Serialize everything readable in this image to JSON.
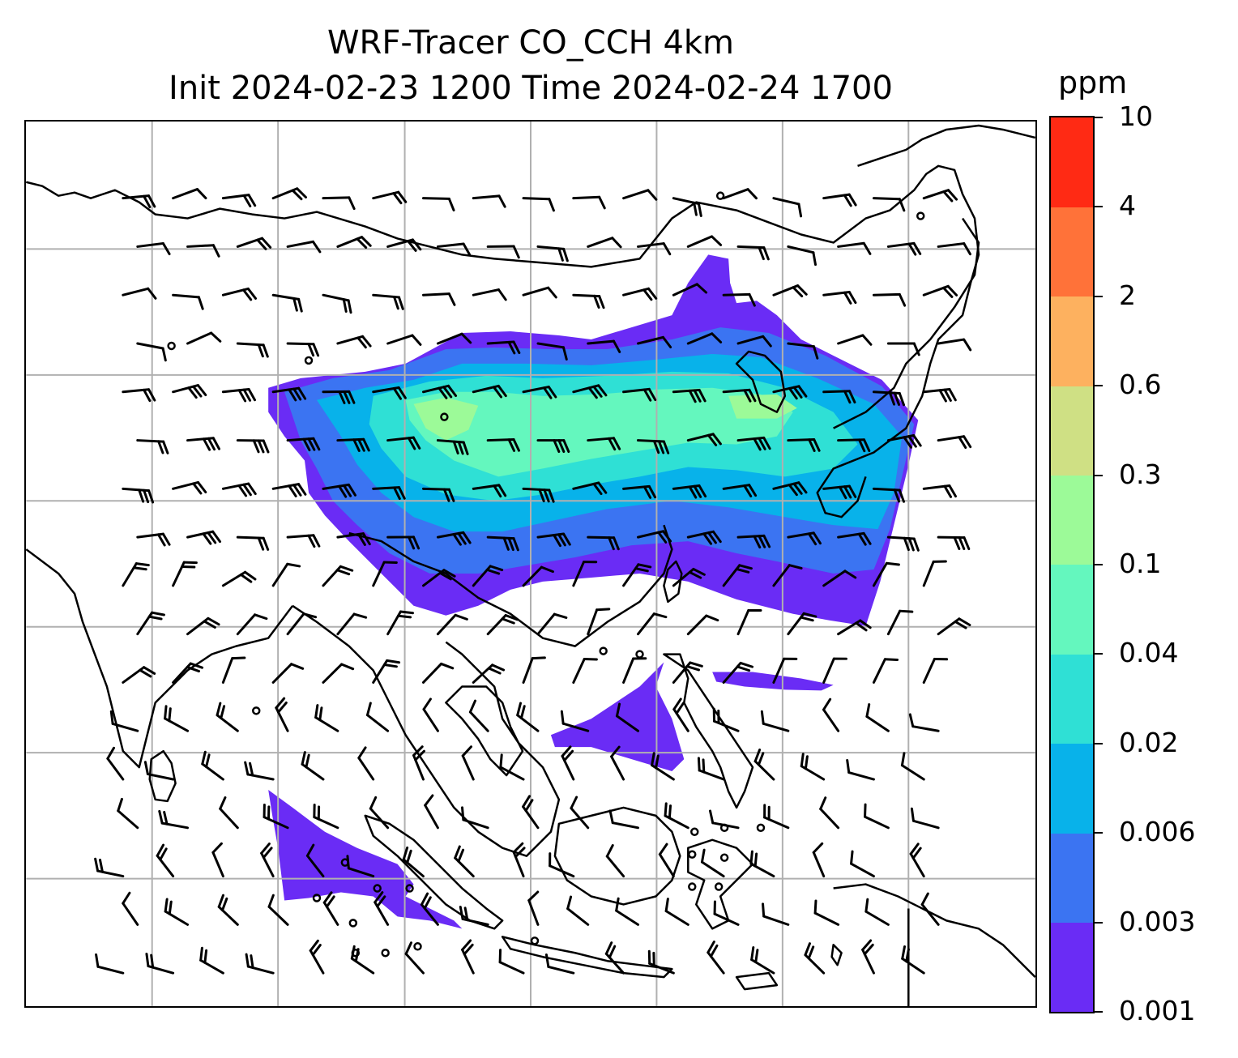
{
  "title_line1": "WRF-Tracer CO_CCH 4km",
  "title_line2": "Init 2024-02-23 1200 Time 2024-02-24 1700",
  "colorbar": {
    "unit": "ppm",
    "ticks": [
      "0.001",
      "0.003",
      "0.006",
      "0.02",
      "0.04",
      "0.1",
      "0.3",
      "0.6",
      "2",
      "4",
      "10"
    ],
    "colors": [
      "#6a2cf5",
      "#3b74f2",
      "#08b2ea",
      "#2fe0d5",
      "#64f7be",
      "#9cfa98",
      "#cfe084",
      "#fdb15f",
      "#ff7239",
      "#ff2a14"
    ]
  },
  "map": {
    "background": "#ffffff",
    "gridline_color": "#b0b0b0",
    "coastline_color": "#000000",
    "barb_color": "#000000"
  }
}
